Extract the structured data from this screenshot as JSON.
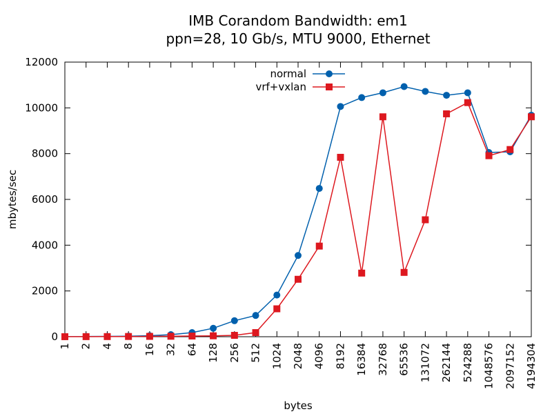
{
  "chart_data": {
    "type": "line",
    "title": "IMB Corandom Bandwidth: em1",
    "subtitle": "ppn=28, 10 Gb/s, MTU 9000, Ethernet",
    "xlabel": "bytes",
    "ylabel": "mbytes/sec",
    "ylim": [
      0,
      12000
    ],
    "yticks": [
      "0",
      "2000",
      "4000",
      "6000",
      "8000",
      "10000",
      "12000"
    ],
    "categories": [
      "1",
      "2",
      "4",
      "8",
      "16",
      "32",
      "64",
      "128",
      "256",
      "512",
      "1024",
      "2048",
      "4096",
      "8192",
      "16384",
      "32768",
      "65536",
      "131072",
      "262144",
      "524288",
      "1048576",
      "2097152",
      "4194304"
    ],
    "legend_position": "top-center",
    "grid": false,
    "series": [
      {
        "name": "normal",
        "color": "#0060ad",
        "marker": "circle",
        "values": [
          5,
          10,
          15,
          25,
          45,
          90,
          180,
          370,
          700,
          930,
          1820,
          3550,
          6480,
          10060,
          10450,
          10660,
          10930,
          10720,
          10550,
          10660,
          8050,
          8080,
          9680
        ]
      },
      {
        "name": "vrf+vxlan",
        "color": "#dd181f",
        "marker": "square",
        "values": [
          2,
          4,
          6,
          10,
          15,
          20,
          30,
          40,
          60,
          180,
          1220,
          2510,
          3960,
          7840,
          2780,
          9610,
          2810,
          5110,
          9740,
          10230,
          7910,
          8180,
          9610
        ]
      }
    ]
  }
}
